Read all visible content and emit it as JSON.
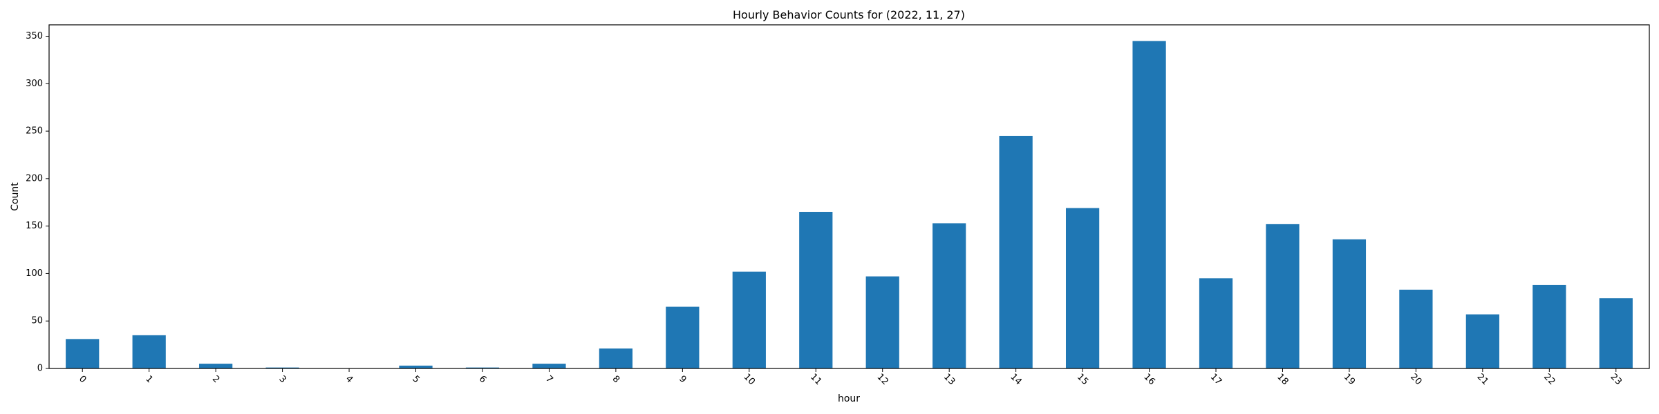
{
  "chart_data": {
    "type": "bar",
    "title": "Hourly Behavior Counts for (2022, 11, 27)",
    "xlabel": "hour",
    "ylabel": "Count",
    "categories": [
      "0",
      "1",
      "2",
      "3",
      "4",
      "5",
      "6",
      "7",
      "8",
      "9",
      "10",
      "11",
      "12",
      "13",
      "14",
      "15",
      "16",
      "17",
      "18",
      "19",
      "20",
      "21",
      "22",
      "23"
    ],
    "values": [
      31,
      35,
      5,
      1,
      0,
      3,
      1,
      5,
      21,
      65,
      102,
      165,
      97,
      153,
      245,
      169,
      345,
      95,
      152,
      136,
      83,
      57,
      88,
      74
    ],
    "ylim": [
      0,
      362
    ],
    "yticks": [
      0,
      50,
      100,
      150,
      200,
      250,
      300,
      350
    ],
    "grid": false,
    "bar_color": "#1f77b4",
    "x_tick_rotation": 45
  }
}
